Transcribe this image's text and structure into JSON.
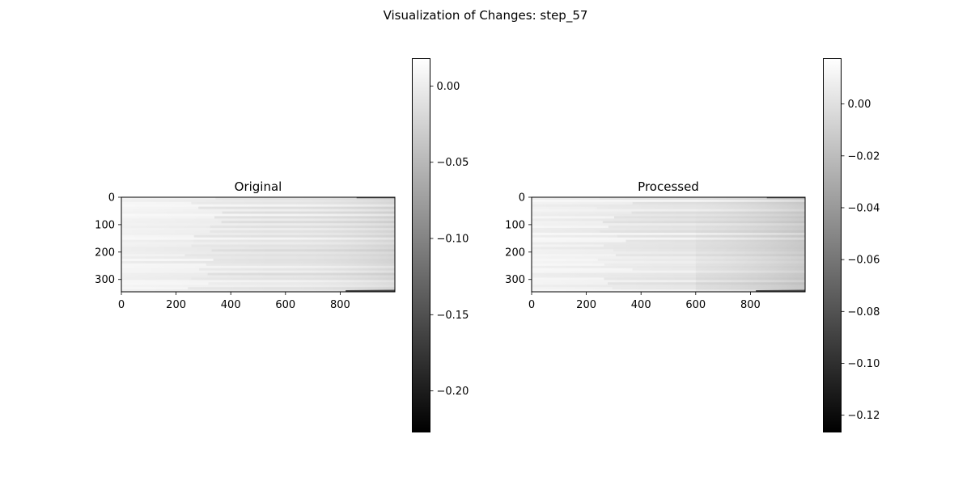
{
  "figure": {
    "suptitle": "Visualization of Changes: step_57"
  },
  "colors": {
    "cmap_low": "#000000",
    "cmap_high": "#ffffff",
    "axis": "#000000",
    "background": "#ffffff"
  },
  "chart_data": [
    {
      "type": "heatmap",
      "title": "Original",
      "cmap": "gray",
      "data_shape": [
        345,
        1000
      ],
      "xticks": [
        0,
        200,
        400,
        600,
        800
      ],
      "xtick_labels": [
        "0",
        "200",
        "400",
        "600",
        "800"
      ],
      "yticks": [
        0,
        100,
        200,
        300
      ],
      "ytick_labels": [
        "0",
        "100",
        "200",
        "300"
      ],
      "xlim": [
        0,
        1000
      ],
      "ylim": [
        345,
        0
      ],
      "colorbar": {
        "vmin": -0.227,
        "vmax": 0.018,
        "ticks": [
          0.0,
          -0.05,
          -0.1,
          -0.15,
          -0.2
        ],
        "tick_labels": [
          "0.00",
          "−0.05",
          "−0.10",
          "−0.15",
          "−0.20"
        ]
      }
    },
    {
      "type": "heatmap",
      "title": "Processed",
      "cmap": "gray",
      "data_shape": [
        345,
        1000
      ],
      "xticks": [
        0,
        200,
        400,
        600,
        800
      ],
      "xtick_labels": [
        "0",
        "200",
        "400",
        "600",
        "800"
      ],
      "yticks": [
        0,
        100,
        200,
        300
      ],
      "ytick_labels": [
        "0",
        "100",
        "200",
        "300"
      ],
      "xlim": [
        0,
        1000
      ],
      "ylim": [
        345,
        0
      ],
      "colorbar": {
        "vmin": -0.1265,
        "vmax": 0.0175,
        "ticks": [
          0.0,
          -0.02,
          -0.04,
          -0.06,
          -0.08,
          -0.1,
          -0.12
        ],
        "tick_labels": [
          "0.00",
          "−0.02",
          "−0.04",
          "−0.06",
          "−0.08",
          "−0.10",
          "−0.12"
        ]
      }
    }
  ]
}
